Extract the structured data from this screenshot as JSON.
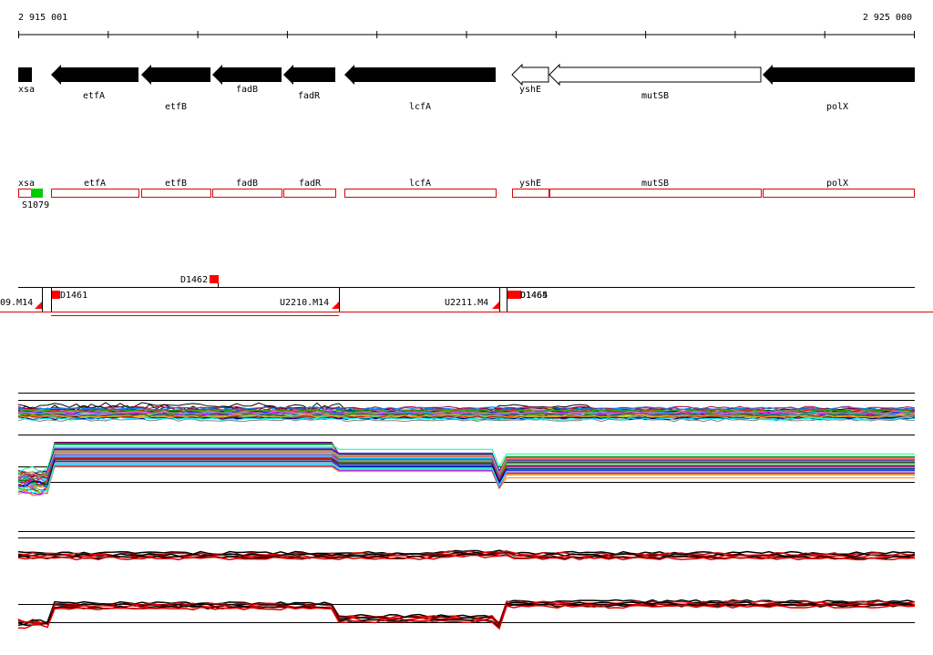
{
  "ruler": {
    "start_label": "2 915 001",
    "end_label": "2 925 000"
  },
  "colors": {
    "gene_fill": "#000000",
    "feature_stroke": "#dd0000",
    "marker_red": "#ff0000",
    "marker_green": "#00cc00",
    "trace_red": "#dd0000"
  },
  "gene_track": [
    {
      "name": "xsa",
      "strand": "forward-stub",
      "fill": "black"
    },
    {
      "name": "etfA",
      "strand": "reverse",
      "fill": "black"
    },
    {
      "name": "etfB",
      "strand": "reverse",
      "fill": "black"
    },
    {
      "name": "fadB",
      "strand": "reverse",
      "fill": "black"
    },
    {
      "name": "fadR",
      "strand": "reverse",
      "fill": "black"
    },
    {
      "name": "lcfA",
      "strand": "reverse",
      "fill": "black"
    },
    {
      "name": "yshE",
      "strand": "reverse",
      "fill": "white"
    },
    {
      "name": "mutSB",
      "strand": "reverse",
      "fill": "white"
    },
    {
      "name": "polX",
      "strand": "reverse",
      "fill": "black"
    }
  ],
  "feature_track": {
    "boxes": [
      "xsa",
      "etfA",
      "etfB",
      "fadB",
      "fadR",
      "lcfA",
      "yshE",
      "mutSB",
      "polX"
    ],
    "marker_label": "S1079"
  },
  "segment_track": {
    "labels": [
      "D1462",
      "D1461",
      "09.M14",
      "U2210.M14",
      "U2211.M4",
      "D1464",
      "D1465"
    ]
  },
  "traces": {
    "panel1_series_count": 40,
    "panel2_series_count": 6
  }
}
